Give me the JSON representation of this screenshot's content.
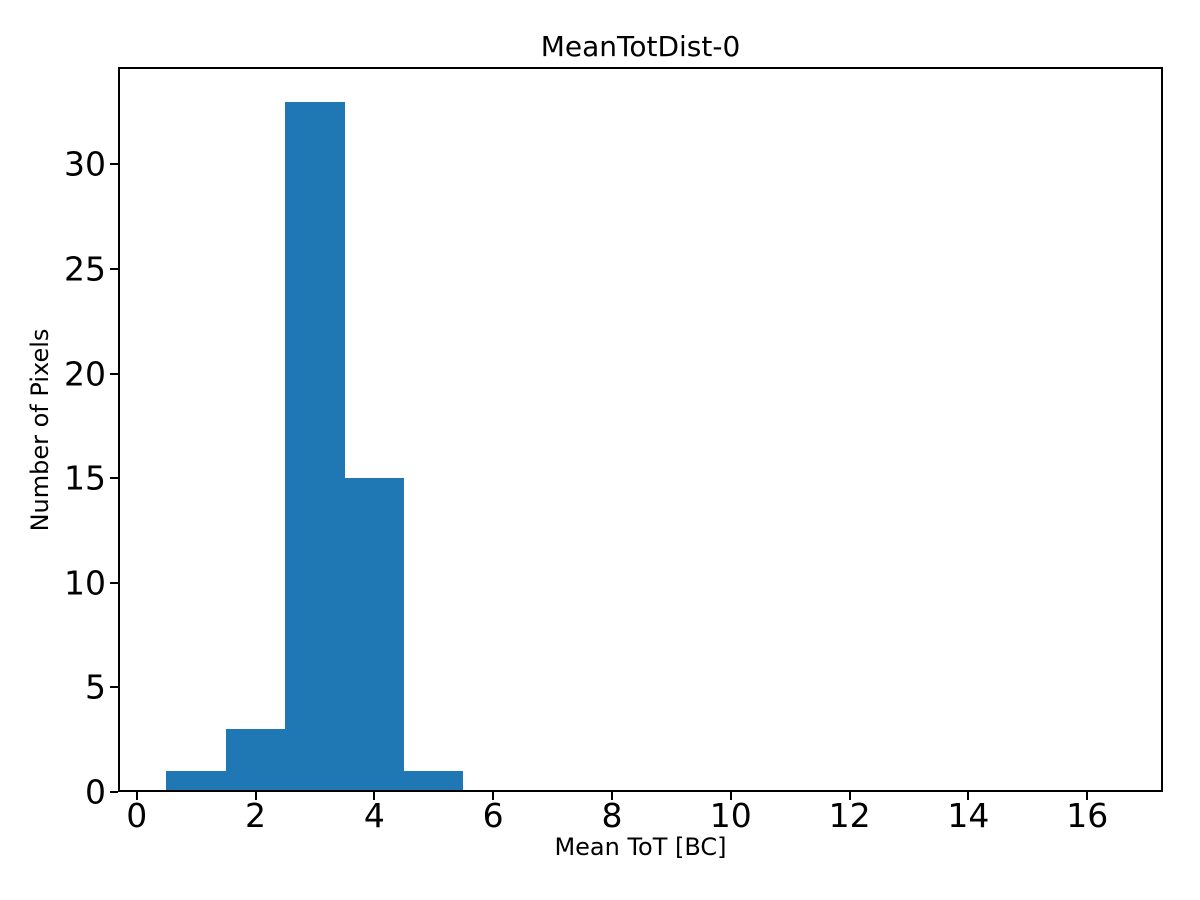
{
  "chart_data": {
    "type": "bar",
    "chart_kind": "histogram",
    "title": "MeanTotDist-0",
    "xlabel": "Mean ToT [BC]",
    "ylabel": "Number of Pixels",
    "bin_edges": [
      0.5,
      1.5,
      2.5,
      3.5,
      4.5,
      5.5
    ],
    "counts": [
      1,
      3,
      33,
      15,
      1
    ],
    "xtick_labels": [
      "0",
      "2",
      "4",
      "6",
      "8",
      "10",
      "12",
      "14",
      "16"
    ],
    "xtick_values": [
      0,
      2,
      4,
      6,
      8,
      10,
      12,
      14,
      16
    ],
    "ytick_labels": [
      "0",
      "5",
      "10",
      "15",
      "20",
      "25",
      "30"
    ],
    "ytick_values": [
      0,
      5,
      10,
      15,
      20,
      25,
      30
    ],
    "xlim": [
      -0.315,
      17.275
    ],
    "ylim": [
      0,
      34.65
    ],
    "bar_color": "#1f77b4",
    "axis_color": "#000000",
    "text_color": "#000000",
    "background_color": "#ffffff",
    "grid": false,
    "legend": "none"
  }
}
